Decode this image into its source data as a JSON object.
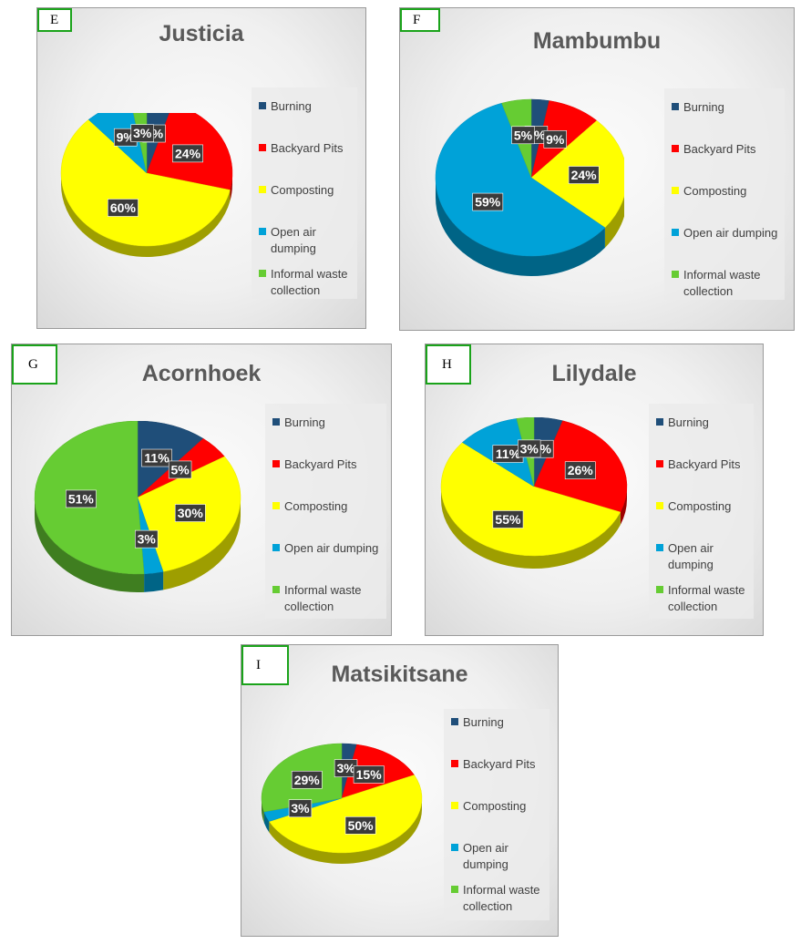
{
  "legend_labels": [
    "Burning",
    "Backyard Pits",
    "Composting",
    "Open air dumping",
    "Informal waste collection"
  ],
  "colors": {
    "Burning": "#1f4e79",
    "Backyard Pits": "#ff0000",
    "Composting": "#ffff00",
    "Open air dumping": "#00a2d8",
    "Informal waste collection": "#66cc33"
  },
  "chart_data": [
    {
      "type": "pie",
      "tag": "E",
      "title": "Justicia",
      "categories": [
        "Burning",
        "Backyard Pits",
        "Composting",
        "Open air dumping",
        "Informal waste collection"
      ],
      "values": [
        5,
        24,
        60,
        9,
        3
      ],
      "labels": [
        "5%",
        "24%",
        "60%",
        "9%",
        "3%"
      ]
    },
    {
      "type": "pie",
      "tag": "F",
      "title": "Mambumbu",
      "categories": [
        "Burning",
        "Backyard Pits",
        "Composting",
        "Open air dumping",
        "Informal waste collection"
      ],
      "values": [
        3,
        9,
        24,
        59,
        5
      ],
      "labels": [
        "3%",
        "9%",
        "24%",
        "59%",
        "5%"
      ]
    },
    {
      "type": "pie",
      "tag": "G",
      "title": "Acornhoek",
      "categories": [
        "Burning",
        "Backyard Pits",
        "Composting",
        "Open air dumping",
        "Informal waste collection"
      ],
      "values": [
        11,
        5,
        30,
        3,
        51
      ],
      "labels": [
        "11%",
        "5%",
        "30%",
        "3%",
        "51%"
      ]
    },
    {
      "type": "pie",
      "tag": "H",
      "title": "Lilydale",
      "categories": [
        "Burning",
        "Backyard Pits",
        "Composting",
        "Open air dumping",
        "Informal waste collection"
      ],
      "values": [
        5,
        26,
        55,
        11,
        3
      ],
      "labels": [
        "5%",
        "26%",
        "55%",
        "11%",
        "3%"
      ]
    },
    {
      "type": "pie",
      "tag": "I",
      "title": "Matsikitsane",
      "categories": [
        "Burning",
        "Backyard Pits",
        "Composting",
        "Open air dumping",
        "Informal waste collection"
      ],
      "values": [
        3,
        15,
        50,
        3,
        29
      ],
      "labels": [
        "3%",
        "15%",
        "50%",
        "3%",
        "29%"
      ]
    }
  ]
}
